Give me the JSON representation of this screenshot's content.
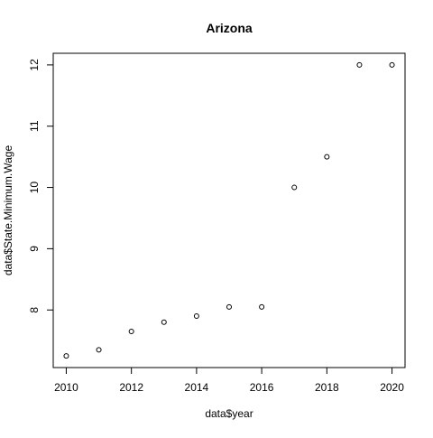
{
  "chart_data": {
    "type": "scatter",
    "title": "Arizona",
    "xlabel": "data$year",
    "ylabel": "data$State.Minimum.Wage",
    "x": [
      2010,
      2011,
      2012,
      2013,
      2014,
      2015,
      2016,
      2017,
      2018,
      2019,
      2020
    ],
    "y": [
      7.25,
      7.35,
      7.65,
      7.8,
      7.9,
      8.05,
      8.05,
      10.0,
      10.5,
      12.0,
      12.0
    ],
    "xlim": [
      2009.6,
      2020.4
    ],
    "ylim": [
      7.06,
      12.19
    ],
    "x_ticks": [
      "2010",
      "2012",
      "2014",
      "2016",
      "2018",
      "2020"
    ],
    "y_ticks": [
      "8",
      "9",
      "10",
      "11",
      "12"
    ],
    "grid": false,
    "legend": "none",
    "marker": "open-circle",
    "colors": {
      "points": "#000000",
      "axes": "#000000",
      "background": "#ffffff"
    }
  }
}
